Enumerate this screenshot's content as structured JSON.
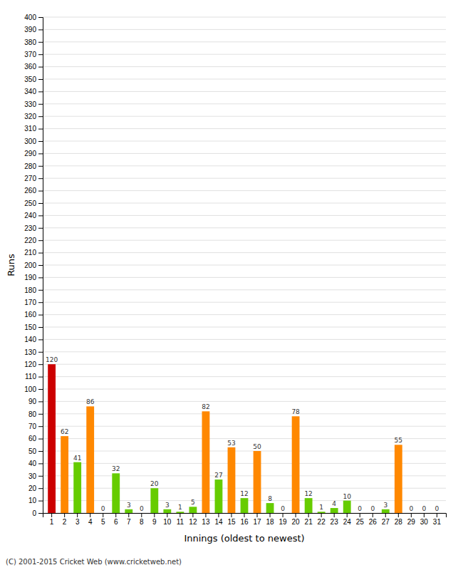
{
  "chart_data": {
    "type": "bar",
    "categories": [
      "1",
      "2",
      "3",
      "4",
      "5",
      "6",
      "7",
      "8",
      "9",
      "10",
      "11",
      "12",
      "13",
      "14",
      "15",
      "16",
      "17",
      "18",
      "19",
      "20",
      "21",
      "22",
      "23",
      "24",
      "25",
      "26",
      "27",
      "28",
      "29",
      "30",
      "31"
    ],
    "values": [
      120,
      62,
      41,
      86,
      0,
      32,
      3,
      0,
      20,
      3,
      1,
      5,
      82,
      27,
      53,
      12,
      50,
      8,
      0,
      78,
      12,
      1,
      4,
      10,
      0,
      0,
      3,
      55,
      0,
      0,
      0
    ],
    "colors": [
      "#cc0000",
      "#ff8800",
      "#66cc00",
      "#ff8800",
      "#66cc00",
      "#66cc00",
      "#66cc00",
      "#66cc00",
      "#66cc00",
      "#66cc00",
      "#66cc00",
      "#66cc00",
      "#ff8800",
      "#66cc00",
      "#ff8800",
      "#66cc00",
      "#ff8800",
      "#66cc00",
      "#66cc00",
      "#ff8800",
      "#66cc00",
      "#66cc00",
      "#66cc00",
      "#66cc00",
      "#66cc00",
      "#66cc00",
      "#66cc00",
      "#ff8800",
      "#66cc00",
      "#66cc00",
      "#66cc00"
    ],
    "x_label": "Innings (oldest to newest)",
    "y_label": "Runs",
    "ylim": [
      0,
      400
    ],
    "yticks": [
      0,
      10,
      20,
      30,
      40,
      50,
      60,
      70,
      80,
      90,
      100,
      110,
      120,
      130,
      140,
      150,
      160,
      170,
      180,
      190,
      200,
      210,
      220,
      230,
      240,
      250,
      260,
      270,
      280,
      290,
      300,
      310,
      320,
      330,
      340,
      350,
      360,
      370,
      380,
      390,
      400
    ],
    "grid": true,
    "data_labels": true,
    "annotations": [
      "(C) 2001-2015 Cricket Web (www.cricketweb.net)"
    ]
  }
}
